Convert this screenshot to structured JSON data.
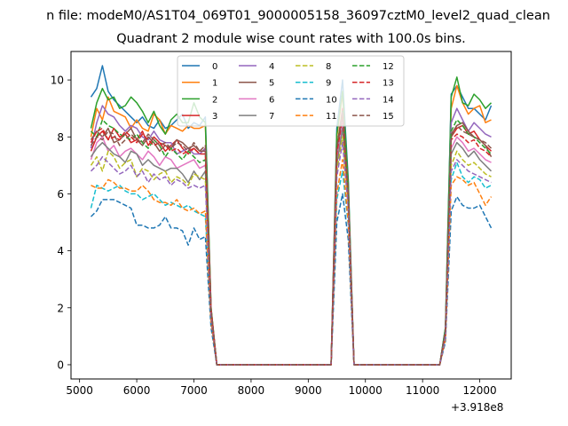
{
  "figure": {
    "suptitle": "n file: modeM0/AS1T04_069T01_9000005158_36097cztM0_level2_quad_clean",
    "title": "Quadrant 2 module wise count rates with 100.0s bins.",
    "x_offset_label": "+3.918e8"
  },
  "chart_data": {
    "type": "line",
    "title": "Quadrant 2 module wise count rates with 100.0s bins.",
    "xlabel": "",
    "ylabel": "",
    "x_offset": "+3.918e8",
    "xlim": [
      4850,
      12550
    ],
    "ylim": [
      -0.5,
      11
    ],
    "xticks": [
      5000,
      6000,
      7000,
      8000,
      9000,
      10000,
      11000,
      12000
    ],
    "yticks": [
      0,
      2,
      4,
      6,
      8,
      10
    ],
    "grid": false,
    "legend": {
      "placement": "top-center",
      "columns": 4
    },
    "x": [
      5200,
      5300,
      5400,
      5500,
      5600,
      5700,
      5800,
      5900,
      6000,
      6100,
      6200,
      6300,
      6400,
      6500,
      6600,
      6700,
      6800,
      6900,
      7000,
      7100,
      7200,
      7300,
      7400,
      7500,
      7600,
      7700,
      7800,
      7900,
      8000,
      8100,
      8200,
      8300,
      8400,
      8500,
      8600,
      8700,
      8800,
      8900,
      9000,
      9100,
      9200,
      9300,
      9400,
      9500,
      9600,
      9700,
      9800,
      9900,
      10000,
      10100,
      10200,
      10300,
      10400,
      10500,
      10600,
      10700,
      10800,
      10900,
      11000,
      11100,
      11200,
      11300,
      11400,
      11500,
      11600,
      11700,
      11800,
      11900,
      12000,
      12100,
      12200
    ],
    "series": [
      {
        "name": "0",
        "color": "#1f77b4",
        "dash": "solid",
        "values": [
          9.4,
          9.7,
          10.5,
          9.6,
          9.3,
          9.1,
          8.9,
          8.7,
          8.5,
          8.7,
          8.4,
          8.3,
          8.6,
          8.3,
          8.4,
          8.6,
          8.8,
          8.3,
          8.5,
          8.4,
          8.7,
          2.0,
          0,
          0,
          0,
          0,
          0,
          0,
          0,
          0,
          0,
          0,
          0,
          0,
          0,
          0,
          0,
          0,
          0,
          0,
          0,
          0,
          0,
          8.3,
          10.0,
          6.5,
          0,
          0,
          0,
          0,
          0,
          0,
          0,
          0,
          0,
          0,
          0,
          0,
          0,
          0,
          0,
          0,
          1.3,
          9.5,
          9.8,
          9.4,
          9.0,
          9.0,
          8.8,
          8.6,
          9.1
        ]
      },
      {
        "name": "1",
        "color": "#ff7f0e",
        "dash": "solid",
        "values": [
          8.0,
          9.0,
          8.6,
          9.4,
          8.9,
          8.8,
          8.7,
          8.3,
          8.6,
          8.3,
          8.2,
          8.8,
          8.6,
          8.1,
          8.4,
          8.3,
          8.2,
          8.4,
          8.3,
          8.3,
          8.4,
          2.0,
          0,
          0,
          0,
          0,
          0,
          0,
          0,
          0,
          0,
          0,
          0,
          0,
          0,
          0,
          0,
          0,
          0,
          0,
          0,
          0,
          0,
          8.0,
          9.5,
          6.2,
          0,
          0,
          0,
          0,
          0,
          0,
          0,
          0,
          0,
          0,
          0,
          0,
          0,
          0,
          0,
          0,
          1.2,
          9.0,
          9.8,
          9.2,
          8.8,
          9.0,
          9.1,
          8.5,
          8.6
        ]
      },
      {
        "name": "2",
        "color": "#2ca02c",
        "dash": "solid",
        "values": [
          8.3,
          9.2,
          9.7,
          9.3,
          9.4,
          9.0,
          9.1,
          9.4,
          9.2,
          8.9,
          8.5,
          8.9,
          8.4,
          8.1,
          8.6,
          8.8,
          8.5,
          8.5,
          9.2,
          8.7,
          8.5,
          2.0,
          0,
          0,
          0,
          0,
          0,
          0,
          0,
          0,
          0,
          0,
          0,
          0,
          0,
          0,
          0,
          0,
          0,
          0,
          0,
          0,
          0,
          8.1,
          9.6,
          6.4,
          0,
          0,
          0,
          0,
          0,
          0,
          0,
          0,
          0,
          0,
          0,
          0,
          0,
          0,
          0,
          0,
          1.3,
          9.4,
          10.1,
          9.2,
          9.1,
          9.5,
          9.3,
          9.0,
          9.2
        ]
      },
      {
        "name": "3",
        "color": "#d62728",
        "dash": "solid",
        "values": [
          7.5,
          8.0,
          8.2,
          7.9,
          8.3,
          8.0,
          8.1,
          7.8,
          7.9,
          8.2,
          7.7,
          8.0,
          7.8,
          7.5,
          7.7,
          7.9,
          7.6,
          7.4,
          7.6,
          7.4,
          7.6,
          1.9,
          0,
          0,
          0,
          0,
          0,
          0,
          0,
          0,
          0,
          0,
          0,
          0,
          0,
          0,
          0,
          0,
          0,
          0,
          0,
          0,
          0,
          7.6,
          9.0,
          6.0,
          0,
          0,
          0,
          0,
          0,
          0,
          0,
          0,
          0,
          0,
          0,
          0,
          0,
          0,
          0,
          0,
          1.2,
          8.0,
          8.3,
          8.4,
          8.1,
          8.2,
          7.9,
          7.7,
          7.5
        ]
      },
      {
        "name": "4",
        "color": "#9467bd",
        "dash": "solid",
        "values": [
          7.6,
          8.5,
          9.1,
          8.8,
          8.7,
          8.4,
          8.2,
          8.4,
          8.3,
          8.0,
          7.9,
          8.2,
          7.9,
          7.8,
          7.8,
          7.4,
          7.5,
          7.6,
          7.4,
          7.4,
          7.6,
          1.9,
          0,
          0,
          0,
          0,
          0,
          0,
          0,
          0,
          0,
          0,
          0,
          0,
          0,
          0,
          0,
          0,
          0,
          0,
          0,
          0,
          0,
          7.5,
          8.8,
          6.0,
          0,
          0,
          0,
          0,
          0,
          0,
          0,
          0,
          0,
          0,
          0,
          0,
          0,
          0,
          0,
          0,
          1.2,
          8.5,
          9.0,
          8.6,
          8.2,
          8.5,
          8.3,
          8.1,
          8.0
        ]
      },
      {
        "name": "5",
        "color": "#8c564b",
        "dash": "solid",
        "values": [
          7.9,
          8.2,
          8.0,
          8.3,
          7.8,
          7.9,
          8.1,
          8.3,
          7.9,
          7.7,
          8.0,
          7.8,
          7.5,
          7.7,
          7.6,
          7.9,
          7.8,
          7.6,
          7.7,
          7.5,
          7.5,
          1.9,
          0,
          0,
          0,
          0,
          0,
          0,
          0,
          0,
          0,
          0,
          0,
          0,
          0,
          0,
          0,
          0,
          0,
          0,
          0,
          0,
          0,
          7.5,
          8.8,
          5.9,
          0,
          0,
          0,
          0,
          0,
          0,
          0,
          0,
          0,
          0,
          0,
          0,
          0,
          0,
          0,
          0,
          1.2,
          8.1,
          8.4,
          8.5,
          8.2,
          8.0,
          7.9,
          7.7,
          7.3
        ]
      },
      {
        "name": "6",
        "color": "#e377c2",
        "dash": "solid",
        "values": [
          7.2,
          7.8,
          8.0,
          7.5,
          7.7,
          7.3,
          7.5,
          7.6,
          7.4,
          7.2,
          7.5,
          7.3,
          7.0,
          7.3,
          7.2,
          6.9,
          7.0,
          7.1,
          7.2,
          6.9,
          7.0,
          1.8,
          0,
          0,
          0,
          0,
          0,
          0,
          0,
          0,
          0,
          0,
          0,
          0,
          0,
          0,
          0,
          0,
          0,
          0,
          0,
          0,
          0,
          7.2,
          8.5,
          5.8,
          0,
          0,
          0,
          0,
          0,
          0,
          0,
          0,
          0,
          0,
          0,
          0,
          0,
          0,
          0,
          0,
          1.1,
          7.6,
          8.0,
          7.8,
          7.5,
          7.6,
          7.4,
          7.2,
          7.1
        ]
      },
      {
        "name": "7",
        "color": "#7f7f7f",
        "dash": "solid",
        "values": [
          7.3,
          7.6,
          7.8,
          7.6,
          7.4,
          7.3,
          7.1,
          7.5,
          7.4,
          7.0,
          7.2,
          7.0,
          6.9,
          6.8,
          6.9,
          6.9,
          6.7,
          6.4,
          6.8,
          6.5,
          6.8,
          1.8,
          0,
          0,
          0,
          0,
          0,
          0,
          0,
          0,
          0,
          0,
          0,
          0,
          0,
          0,
          0,
          0,
          0,
          0,
          0,
          0,
          0,
          7.0,
          8.3,
          5.7,
          0,
          0,
          0,
          0,
          0,
          0,
          0,
          0,
          0,
          0,
          0,
          0,
          0,
          0,
          0,
          0,
          1.1,
          7.4,
          7.8,
          7.6,
          7.3,
          7.5,
          7.2,
          7.0,
          6.8
        ]
      },
      {
        "name": "8",
        "color": "#bcbd22",
        "dash": "dashed",
        "values": [
          7.0,
          7.3,
          6.8,
          7.5,
          7.3,
          6.9,
          7.1,
          7.2,
          6.6,
          6.9,
          6.8,
          6.5,
          6.7,
          6.8,
          6.4,
          6.6,
          6.5,
          6.3,
          6.7,
          6.6,
          6.5,
          1.7,
          0,
          0,
          0,
          0,
          0,
          0,
          0,
          0,
          0,
          0,
          0,
          0,
          0,
          0,
          0,
          0,
          0,
          0,
          0,
          0,
          0,
          6.8,
          8.0,
          5.6,
          0,
          0,
          0,
          0,
          0,
          0,
          0,
          0,
          0,
          0,
          0,
          0,
          0,
          0,
          0,
          0,
          1.0,
          7.0,
          7.5,
          7.2,
          7.0,
          7.1,
          6.9,
          6.7,
          6.6
        ]
      },
      {
        "name": "9",
        "color": "#17becf",
        "dash": "dashed",
        "values": [
          5.5,
          6.3,
          6.2,
          6.1,
          6.2,
          6.3,
          6.1,
          6.0,
          6.0,
          5.8,
          5.9,
          6.0,
          5.8,
          5.6,
          5.7,
          5.6,
          5.5,
          5.6,
          5.4,
          5.3,
          5.2,
          1.5,
          0,
          0,
          0,
          0,
          0,
          0,
          0,
          0,
          0,
          0,
          0,
          0,
          0,
          0,
          0,
          0,
          0,
          0,
          0,
          0,
          0,
          5.8,
          6.8,
          4.9,
          0,
          0,
          0,
          0,
          0,
          0,
          0,
          0,
          0,
          0,
          0,
          0,
          0,
          0,
          0,
          0,
          0.9,
          6.5,
          7.1,
          6.6,
          6.4,
          6.6,
          6.5,
          6.2,
          6.3
        ]
      },
      {
        "name": "10",
        "color": "#1f77b4",
        "dash": "dashed",
        "values": [
          5.2,
          5.4,
          5.8,
          5.8,
          5.8,
          5.7,
          5.6,
          5.5,
          4.9,
          4.9,
          4.8,
          4.8,
          4.9,
          5.2,
          4.8,
          4.8,
          4.7,
          4.2,
          4.8,
          4.4,
          4.5,
          1.3,
          0,
          0,
          0,
          0,
          0,
          0,
          0,
          0,
          0,
          0,
          0,
          0,
          0,
          0,
          0,
          0,
          0,
          0,
          0,
          0,
          0,
          5.0,
          6.0,
          4.4,
          0,
          0,
          0,
          0,
          0,
          0,
          0,
          0,
          0,
          0,
          0,
          0,
          0,
          0,
          0,
          0,
          0.8,
          5.4,
          5.9,
          5.6,
          5.5,
          5.5,
          5.6,
          5.2,
          4.8
        ]
      },
      {
        "name": "11",
        "color": "#ff7f0e",
        "dash": "dashed",
        "values": [
          6.3,
          6.2,
          6.2,
          6.5,
          6.4,
          6.2,
          6.2,
          6.1,
          6.1,
          6.3,
          6.1,
          5.8,
          5.7,
          5.7,
          5.6,
          5.8,
          5.5,
          5.4,
          5.5,
          5.3,
          5.4,
          1.5,
          0,
          0,
          0,
          0,
          0,
          0,
          0,
          0,
          0,
          0,
          0,
          0,
          0,
          0,
          0,
          0,
          0,
          0,
          0,
          0,
          0,
          6.0,
          7.2,
          5.0,
          0,
          0,
          0,
          0,
          0,
          0,
          0,
          0,
          0,
          0,
          0,
          0,
          0,
          0,
          0,
          0,
          0.9,
          6.3,
          6.6,
          6.5,
          6.3,
          6.4,
          6.0,
          5.6,
          5.9
        ]
      },
      {
        "name": "12",
        "color": "#2ca02c",
        "dash": "dashed",
        "values": [
          8.2,
          8.0,
          8.6,
          8.4,
          8.3,
          8.1,
          8.0,
          7.9,
          8.1,
          7.8,
          7.6,
          7.9,
          7.7,
          7.3,
          7.6,
          7.4,
          7.2,
          7.5,
          7.3,
          7.1,
          7.2,
          1.8,
          0,
          0,
          0,
          0,
          0,
          0,
          0,
          0,
          0,
          0,
          0,
          0,
          0,
          0,
          0,
          0,
          0,
          0,
          0,
          0,
          0,
          7.6,
          8.9,
          6.0,
          0,
          0,
          0,
          0,
          0,
          0,
          0,
          0,
          0,
          0,
          0,
          0,
          0,
          0,
          0,
          0,
          1.2,
          8.2,
          8.6,
          8.4,
          8.1,
          8.0,
          7.8,
          7.6,
          7.4
        ]
      },
      {
        "name": "13",
        "color": "#d62728",
        "dash": "dashed",
        "values": [
          7.8,
          8.2,
          8.3,
          7.9,
          8.0,
          7.9,
          8.2,
          8.0,
          7.8,
          8.1,
          7.9,
          7.7,
          7.8,
          7.7,
          7.5,
          7.6,
          7.4,
          7.5,
          7.6,
          7.4,
          7.4,
          1.9,
          0,
          0,
          0,
          0,
          0,
          0,
          0,
          0,
          0,
          0,
          0,
          0,
          0,
          0,
          0,
          0,
          0,
          0,
          0,
          0,
          0,
          7.4,
          8.7,
          5.9,
          0,
          0,
          0,
          0,
          0,
          0,
          0,
          0,
          0,
          0,
          0,
          0,
          0,
          0,
          0,
          0,
          1.1,
          7.9,
          8.1,
          8.0,
          7.8,
          7.9,
          7.6,
          7.5,
          7.3
        ]
      },
      {
        "name": "14",
        "color": "#9467bd",
        "dash": "dashed",
        "values": [
          6.8,
          7.0,
          7.3,
          7.1,
          6.9,
          6.7,
          6.8,
          7.0,
          6.6,
          6.8,
          6.4,
          6.7,
          6.5,
          6.6,
          6.3,
          6.5,
          6.4,
          6.2,
          6.3,
          6.2,
          6.3,
          1.7,
          0,
          0,
          0,
          0,
          0,
          0,
          0,
          0,
          0,
          0,
          0,
          0,
          0,
          0,
          0,
          0,
          0,
          0,
          0,
          0,
          0,
          6.6,
          7.8,
          5.5,
          0,
          0,
          0,
          0,
          0,
          0,
          0,
          0,
          0,
          0,
          0,
          0,
          0,
          0,
          0,
          0,
          1.0,
          6.8,
          7.2,
          7.0,
          6.8,
          6.7,
          6.6,
          6.5,
          6.4
        ]
      },
      {
        "name": "15",
        "color": "#8c564b",
        "dash": "dashed",
        "values": [
          7.7,
          8.0,
          7.9,
          8.2,
          8.1,
          7.7,
          7.9,
          8.1,
          7.9,
          7.8,
          8.1,
          7.9,
          7.7,
          7.8,
          7.6,
          7.8,
          7.7,
          7.5,
          7.8,
          7.5,
          7.7,
          1.9,
          0,
          0,
          0,
          0,
          0,
          0,
          0,
          0,
          0,
          0,
          0,
          0,
          0,
          0,
          0,
          0,
          0,
          0,
          0,
          0,
          0,
          7.6,
          8.9,
          6.1,
          0,
          0,
          0,
          0,
          0,
          0,
          0,
          0,
          0,
          0,
          0,
          0,
          0,
          0,
          0,
          0,
          1.2,
          8.0,
          8.4,
          8.2,
          8.1,
          8.0,
          7.9,
          7.8,
          7.6
        ]
      }
    ]
  }
}
